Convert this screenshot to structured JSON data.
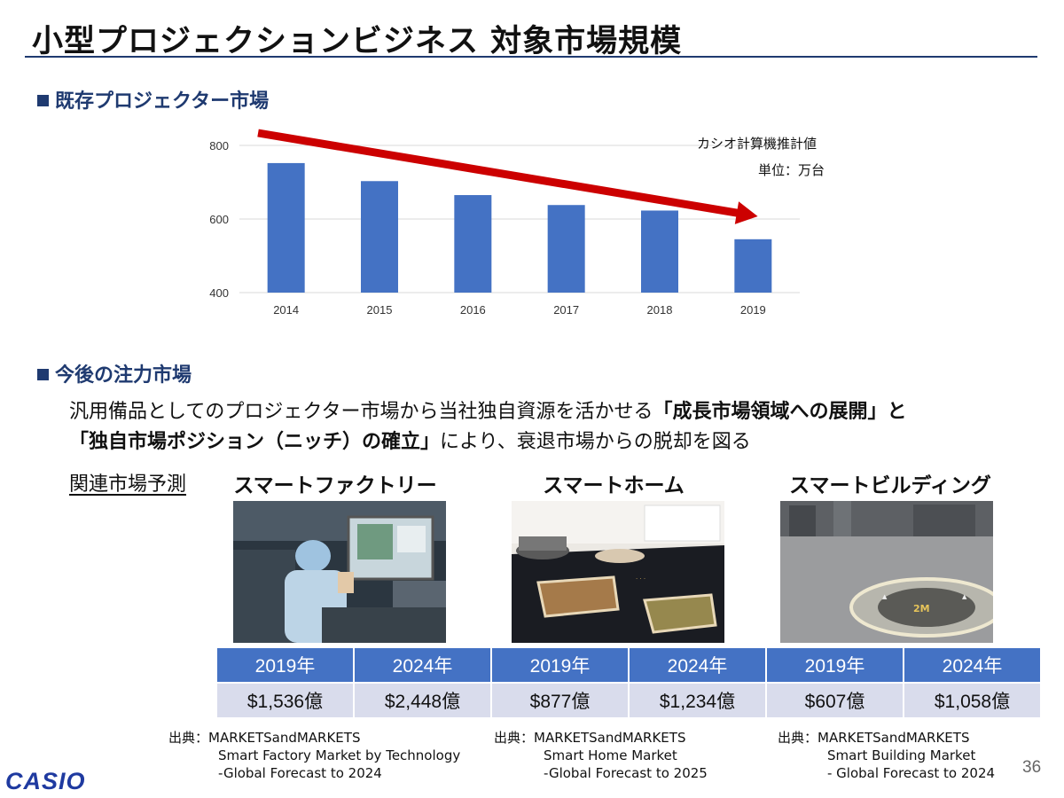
{
  "title": "小型プロジェクションビジネス 対象市場規模",
  "section1": {
    "heading": "既存プロジェクター市場"
  },
  "chart_note": {
    "source": "カシオ計算機推計値",
    "unit": "単位：万台"
  },
  "chart_data": {
    "type": "bar",
    "categories": [
      "2014",
      "2015",
      "2016",
      "2017",
      "2018",
      "2019"
    ],
    "values": [
      752,
      703,
      665,
      638,
      623,
      545
    ],
    "ylim": [
      400,
      800
    ],
    "yticks": [
      400,
      600,
      800
    ],
    "grid": true,
    "bar_color": "#4472c4",
    "trend_arrow_color": "#cc0000"
  },
  "section2": {
    "heading": "今後の注力市場",
    "line1_pre": "汎用備品としてのプロジェクター市場から当社独自資源を活かせる",
    "line1_bold": "「成長市場領域への展開」と",
    "line2_bold": "「独自市場ポジション（ニッチ）の確立」",
    "line2_post": "により、衰退市場からの脱却を図る"
  },
  "related_label": "関連市場予測",
  "markets": [
    {
      "name": "スマートファクトリー",
      "year_a": "2019年",
      "year_b": "2024年",
      "value_a": "$1,536億",
      "value_b": "$2,448億",
      "source_label": "出典：MARKETSandMARKETS",
      "source_line2": "Smart Factory Market by Technology",
      "source_line3": "-Global Forecast to 2024"
    },
    {
      "name": "スマートホーム",
      "year_a": "2019年",
      "year_b": "2024年",
      "value_a": "$877億",
      "value_b": "$1,234億",
      "source_label": "出典：MARKETSandMARKETS",
      "source_line2": "Smart Home Market",
      "source_line3": "-Global Forecast to 2025"
    },
    {
      "name": "スマートビルディング",
      "year_a": "2019年",
      "year_b": "2024年",
      "value_a": "$607億",
      "value_b": "$1,058億",
      "source_label": "出典：MARKETSandMARKETS",
      "source_line2": "Smart Building Market",
      "source_line3": "- Global Forecast to 2024"
    }
  ],
  "logo_text": "CASIO",
  "page_number": "36",
  "colors": {
    "accent": "#1f3a70",
    "table_header": "#4472c4",
    "table_cell": "#d9dcec"
  }
}
